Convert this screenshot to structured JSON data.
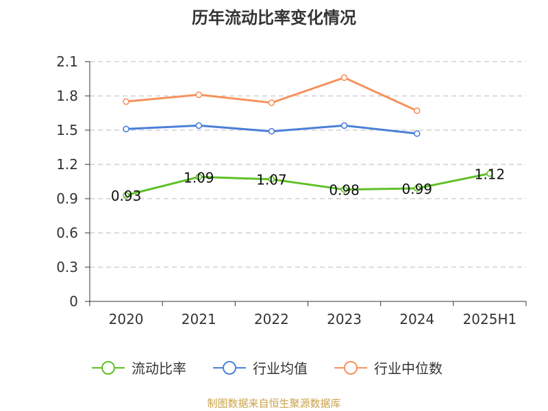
{
  "chart_data": {
    "type": "line",
    "title": "历年流动比率变化情况",
    "categories": [
      "2020",
      "2021",
      "2022",
      "2023",
      "2024",
      "2025H1"
    ],
    "y_ticks": [
      "0",
      "0.3",
      "0.6",
      "0.9",
      "1.2",
      "1.5",
      "1.8",
      "2.1"
    ],
    "ylim": [
      0,
      2.1
    ],
    "grid": true,
    "legend_position": "bottom",
    "series": [
      {
        "name": "流动比率",
        "color": "#5ec026",
        "values": [
          0.93,
          1.09,
          1.07,
          0.98,
          0.99,
          1.12
        ],
        "labels": [
          "0.93",
          "1.09",
          "1.07",
          "0.98",
          "0.99",
          "1.12"
        ]
      },
      {
        "name": "行业均值",
        "color": "#4a7fd8",
        "values": [
          1.51,
          1.54,
          1.49,
          1.54,
          1.47,
          null
        ]
      },
      {
        "name": "行业中位数",
        "color": "#f5915c",
        "values": [
          1.75,
          1.81,
          1.74,
          1.96,
          1.67,
          null
        ]
      }
    ],
    "source": "制图数据来自恒生聚源数据库"
  }
}
